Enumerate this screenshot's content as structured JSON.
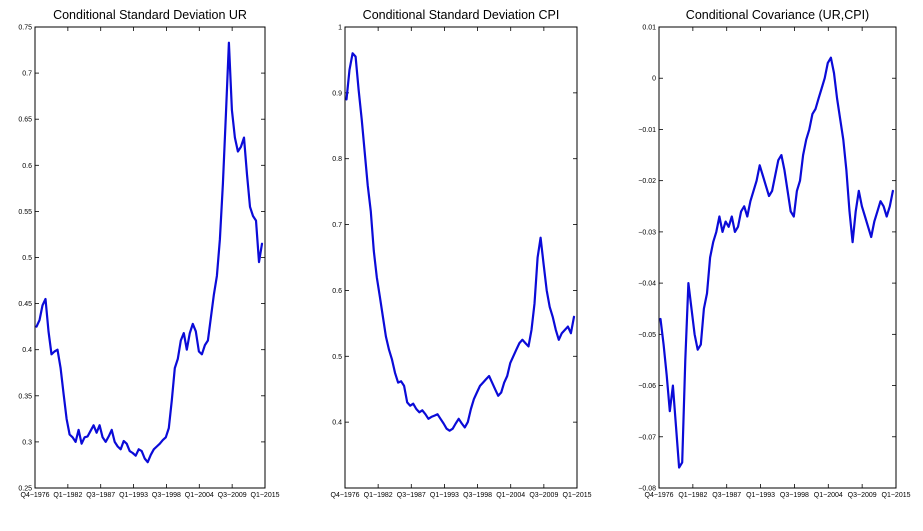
{
  "chart_data": [
    {
      "type": "line",
      "title": "Conditional Standard Deviation UR",
      "color": "#0b0bd8",
      "ylim": [
        0.25,
        0.75
      ],
      "yticks": [
        "0.25",
        "0.3",
        "0.35",
        "0.4",
        "0.45",
        "0.5",
        "0.55",
        "0.6",
        "0.65",
        "0.7",
        "0.75"
      ],
      "xlim": [
        1976.75,
        2015.0
      ],
      "xtick_labels": [
        "Q4−1976",
        "Q1−1982",
        "Q3−1987",
        "Q1−1993",
        "Q3−1998",
        "Q1−2004",
        "Q3−2009",
        "Q1−2015"
      ],
      "series": [
        {
          "x": [
            1977.0,
            1977.5,
            1978.0,
            1978.5,
            1979.0,
            1979.5,
            1980.0,
            1980.5,
            1981.0,
            1981.5,
            1982.0,
            1982.5,
            1983.0,
            1983.5,
            1984.0,
            1984.5,
            1985.0,
            1985.5,
            1986.0,
            1986.5,
            1987.0,
            1987.5,
            1988.0,
            1988.5,
            1989.0,
            1989.5,
            1990.0,
            1990.5,
            1991.0,
            1991.5,
            1992.0,
            1992.5,
            1993.0,
            1993.5,
            1994.0,
            1994.5,
            1995.0,
            1995.5,
            1996.0,
            1996.5,
            1997.0,
            1997.5,
            1998.0,
            1998.5,
            1999.0,
            1999.5,
            2000.0,
            2000.5,
            2001.0,
            2001.5,
            2002.0,
            2002.5,
            2003.0,
            2003.5,
            2004.0,
            2004.5,
            2005.0,
            2005.5,
            2006.0,
            2006.5,
            2007.0,
            2007.5,
            2008.0,
            2008.5,
            2009.0,
            2009.5,
            2010.0,
            2010.5,
            2011.0,
            2011.5,
            2012.0,
            2012.5,
            2013.0,
            2013.5,
            2014.0,
            2014.5
          ],
          "y": [
            0.425,
            0.432,
            0.448,
            0.455,
            0.42,
            0.395,
            0.398,
            0.4,
            0.38,
            0.352,
            0.325,
            0.308,
            0.305,
            0.3,
            0.313,
            0.298,
            0.305,
            0.306,
            0.312,
            0.318,
            0.31,
            0.318,
            0.305,
            0.3,
            0.306,
            0.313,
            0.3,
            0.295,
            0.292,
            0.301,
            0.298,
            0.29,
            0.288,
            0.285,
            0.292,
            0.29,
            0.282,
            0.278,
            0.286,
            0.292,
            0.295,
            0.298,
            0.302,
            0.305,
            0.315,
            0.345,
            0.38,
            0.39,
            0.41,
            0.418,
            0.4,
            0.418,
            0.428,
            0.42,
            0.398,
            0.395,
            0.405,
            0.41,
            0.435,
            0.46,
            0.48,
            0.52,
            0.58,
            0.655,
            0.733,
            0.66,
            0.63,
            0.615,
            0.62,
            0.63,
            0.59,
            0.555,
            0.545,
            0.54,
            0.495,
            0.515
          ]
        }
      ]
    },
    {
      "type": "line",
      "title": "Conditional Standard Deviation CPI",
      "color": "#0b0bd8",
      "ylim": [
        0.3,
        1.0
      ],
      "yticks": [
        "0.4",
        "0.5",
        "0.6",
        "0.7",
        "0.8",
        "0.9",
        "1"
      ],
      "xlim": [
        1976.75,
        2015.0
      ],
      "xtick_labels": [
        "Q4−1976",
        "Q1−1982",
        "Q3−1987",
        "Q1−1993",
        "Q3−1998",
        "Q1−2004",
        "Q3−2009",
        "Q1−2015"
      ],
      "series": [
        {
          "x": [
            1977.0,
            1977.5,
            1978.0,
            1978.5,
            1979.0,
            1979.5,
            1980.0,
            1980.5,
            1981.0,
            1981.5,
            1982.0,
            1982.5,
            1983.0,
            1983.5,
            1984.0,
            1984.5,
            1985.0,
            1985.5,
            1986.0,
            1986.5,
            1987.0,
            1987.5,
            1988.0,
            1988.5,
            1989.0,
            1989.5,
            1990.0,
            1990.5,
            1991.0,
            1991.5,
            1992.0,
            1992.5,
            1993.0,
            1993.5,
            1994.0,
            1994.5,
            1995.0,
            1995.5,
            1996.0,
            1996.5,
            1997.0,
            1997.5,
            1998.0,
            1998.5,
            1999.0,
            1999.5,
            2000.0,
            2000.5,
            2001.0,
            2001.5,
            2002.0,
            2002.5,
            2003.0,
            2003.5,
            2004.0,
            2004.5,
            2005.0,
            2005.5,
            2006.0,
            2006.5,
            2007.0,
            2007.5,
            2008.0,
            2008.5,
            2009.0,
            2009.5,
            2010.0,
            2010.5,
            2011.0,
            2011.5,
            2012.0,
            2012.5,
            2013.0,
            2013.5,
            2014.0,
            2014.5
          ],
          "y": [
            0.89,
            0.935,
            0.96,
            0.955,
            0.905,
            0.86,
            0.81,
            0.76,
            0.72,
            0.66,
            0.62,
            0.59,
            0.56,
            0.53,
            0.51,
            0.495,
            0.475,
            0.46,
            0.462,
            0.455,
            0.43,
            0.425,
            0.428,
            0.42,
            0.415,
            0.418,
            0.412,
            0.405,
            0.408,
            0.41,
            0.412,
            0.405,
            0.398,
            0.39,
            0.387,
            0.39,
            0.398,
            0.405,
            0.398,
            0.392,
            0.4,
            0.42,
            0.435,
            0.445,
            0.455,
            0.46,
            0.465,
            0.47,
            0.46,
            0.45,
            0.44,
            0.445,
            0.46,
            0.47,
            0.49,
            0.5,
            0.51,
            0.52,
            0.525,
            0.52,
            0.515,
            0.54,
            0.58,
            0.65,
            0.68,
            0.64,
            0.6,
            0.575,
            0.56,
            0.54,
            0.525,
            0.535,
            0.54,
            0.545,
            0.535,
            0.56
          ]
        }
      ]
    },
    {
      "type": "line",
      "title": "Conditional Covariance (UR,CPI)",
      "color": "#0b0bd8",
      "ylim": [
        -0.08,
        0.01
      ],
      "yticks": [
        "−0.08",
        "−0.07",
        "−0.06",
        "−0.05",
        "−0.04",
        "−0.03",
        "−0.02",
        "−0.01",
        "0",
        "0.01"
      ],
      "xlim": [
        1976.75,
        2015.0
      ],
      "xtick_labels": [
        "Q4−1976",
        "Q1−1982",
        "Q3−1987",
        "Q1−1993",
        "Q3−1998",
        "Q1−2004",
        "Q3−2009",
        "Q1−2015"
      ],
      "series": [
        {
          "x": [
            1977.0,
            1977.5,
            1978.0,
            1978.5,
            1979.0,
            1979.5,
            1980.0,
            1980.5,
            1981.0,
            1981.5,
            1982.0,
            1982.5,
            1983.0,
            1983.5,
            1984.0,
            1984.5,
            1985.0,
            1985.5,
            1986.0,
            1986.5,
            1987.0,
            1987.5,
            1988.0,
            1988.5,
            1989.0,
            1989.5,
            1990.0,
            1990.5,
            1991.0,
            1991.5,
            1992.0,
            1992.5,
            1993.0,
            1993.5,
            1994.0,
            1994.5,
            1995.0,
            1995.5,
            1996.0,
            1996.5,
            1997.0,
            1997.5,
            1998.0,
            1998.5,
            1999.0,
            1999.5,
            2000.0,
            2000.5,
            2001.0,
            2001.5,
            2002.0,
            2002.5,
            2003.0,
            2003.5,
            2004.0,
            2004.5,
            2005.0,
            2005.5,
            2006.0,
            2006.5,
            2007.0,
            2007.5,
            2008.0,
            2008.5,
            2009.0,
            2009.5,
            2010.0,
            2010.5,
            2011.0,
            2011.5,
            2012.0,
            2012.5,
            2013.0,
            2013.5,
            2014.0,
            2014.5
          ],
          "y": [
            -0.047,
            -0.052,
            -0.058,
            -0.065,
            -0.06,
            -0.068,
            -0.076,
            -0.075,
            -0.055,
            -0.04,
            -0.045,
            -0.05,
            -0.053,
            -0.052,
            -0.045,
            -0.042,
            -0.035,
            -0.032,
            -0.03,
            -0.027,
            -0.03,
            -0.028,
            -0.029,
            -0.027,
            -0.03,
            -0.029,
            -0.026,
            -0.025,
            -0.027,
            -0.024,
            -0.022,
            -0.02,
            -0.017,
            -0.019,
            -0.021,
            -0.023,
            -0.022,
            -0.019,
            -0.016,
            -0.015,
            -0.018,
            -0.022,
            -0.026,
            -0.027,
            -0.022,
            -0.02,
            -0.015,
            -0.012,
            -0.01,
            -0.007,
            -0.006,
            -0.004,
            -0.002,
            0.0,
            0.003,
            0.004,
            0.001,
            -0.004,
            -0.008,
            -0.012,
            -0.018,
            -0.026,
            -0.032,
            -0.026,
            -0.022,
            -0.025,
            -0.027,
            -0.029,
            -0.031,
            -0.028,
            -0.026,
            -0.024,
            -0.025,
            -0.027,
            -0.025,
            -0.022
          ]
        }
      ]
    }
  ]
}
